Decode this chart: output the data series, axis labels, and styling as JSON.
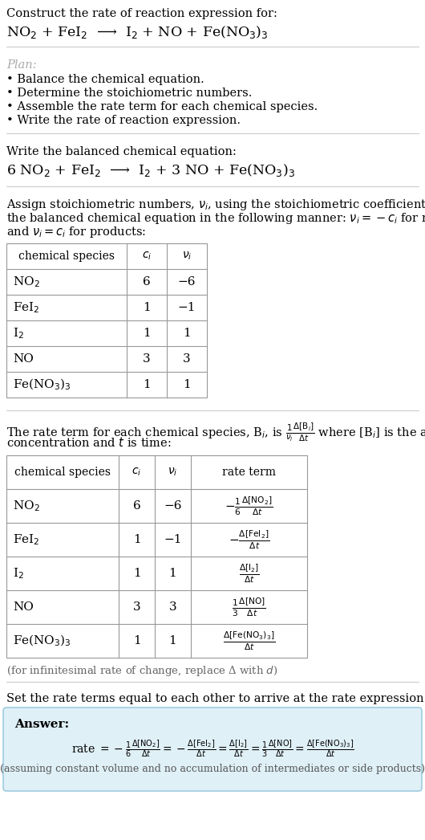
{
  "bg_color": "#ffffff",
  "text_color": "#000000",
  "light_blue_bg": "#dff0f7",
  "title_line1": "Construct the rate of reaction expression for:",
  "reaction_unbalanced": "NO$_2$ + FeI$_2$  ⟶  I$_2$ + NO + Fe(NO$_3$)$_3$",
  "plan_header": "Plan:",
  "plan_items": [
    "• Balance the chemical equation.",
    "• Determine the stoichiometric numbers.",
    "• Assemble the rate term for each chemical species.",
    "• Write the rate of reaction expression."
  ],
  "balanced_header": "Write the balanced chemical equation:",
  "reaction_balanced": "6 NO$_2$ + FeI$_2$  ⟶  I$_2$ + 3 NO + Fe(NO$_3$)$_3$",
  "table1_header_lines": [
    "Assign stoichiometric numbers, $\\nu_i$, using the stoichiometric coefficients, $c_i$, from",
    "the balanced chemical equation in the following manner: $\\nu_i = -c_i$ for reactants",
    "and $\\nu_i = c_i$ for products:"
  ],
  "table1_cols": [
    "chemical species",
    "$c_i$",
    "$\\nu_i$"
  ],
  "table1_rows": [
    [
      "NO$_2$",
      "6",
      "−6"
    ],
    [
      "FeI$_2$",
      "1",
      "−1"
    ],
    [
      "I$_2$",
      "1",
      "1"
    ],
    [
      "NO",
      "3",
      "3"
    ],
    [
      "Fe(NO$_3$)$_3$",
      "1",
      "1"
    ]
  ],
  "rate_term_intro_lines": [
    "The rate term for each chemical species, B$_i$, is $\\frac{1}{\\nu_i}\\frac{\\Delta[\\mathrm{B}_i]}{\\Delta t}$ where [B$_i$] is the amount",
    "concentration and $t$ is time:"
  ],
  "table2_cols": [
    "chemical species",
    "$c_i$",
    "$\\nu_i$",
    "rate term"
  ],
  "table2_rows": [
    [
      "NO$_2$",
      "6",
      "−6",
      "$-\\frac{1}{6}\\frac{\\Delta[\\mathrm{NO}_2]}{\\Delta t}$"
    ],
    [
      "FeI$_2$",
      "1",
      "−1",
      "$-\\frac{\\Delta[\\mathrm{FeI}_2]}{\\Delta t}$"
    ],
    [
      "I$_2$",
      "1",
      "1",
      "$\\frac{\\Delta[\\mathrm{I}_2]}{\\Delta t}$"
    ],
    [
      "NO",
      "3",
      "3",
      "$\\frac{1}{3}\\frac{\\Delta[\\mathrm{NO}]}{\\Delta t}$"
    ],
    [
      "Fe(NO$_3$)$_3$",
      "1",
      "1",
      "$\\frac{\\Delta[\\mathrm{Fe(NO_3)_3}]}{\\Delta t}$"
    ]
  ],
  "infinitesimal_note": "(for infinitesimal rate of change, replace Δ with $d$)",
  "set_rate_text": "Set the rate terms equal to each other to arrive at the rate expression:",
  "answer_label": "Answer:",
  "rate_expression": "rate $= -\\frac{1}{6}\\frac{\\Delta[\\mathrm{NO_2}]}{\\Delta t} = -\\frac{\\Delta[\\mathrm{FeI_2}]}{\\Delta t} = \\frac{\\Delta[\\mathrm{I_2}]}{\\Delta t} = \\frac{1}{3}\\frac{\\Delta[\\mathrm{NO}]}{\\Delta t} = \\frac{\\Delta[\\mathrm{Fe(NO_3)_3}]}{\\Delta t}$",
  "assuming_note": "(assuming constant volume and no accumulation of intermediates or side products)"
}
